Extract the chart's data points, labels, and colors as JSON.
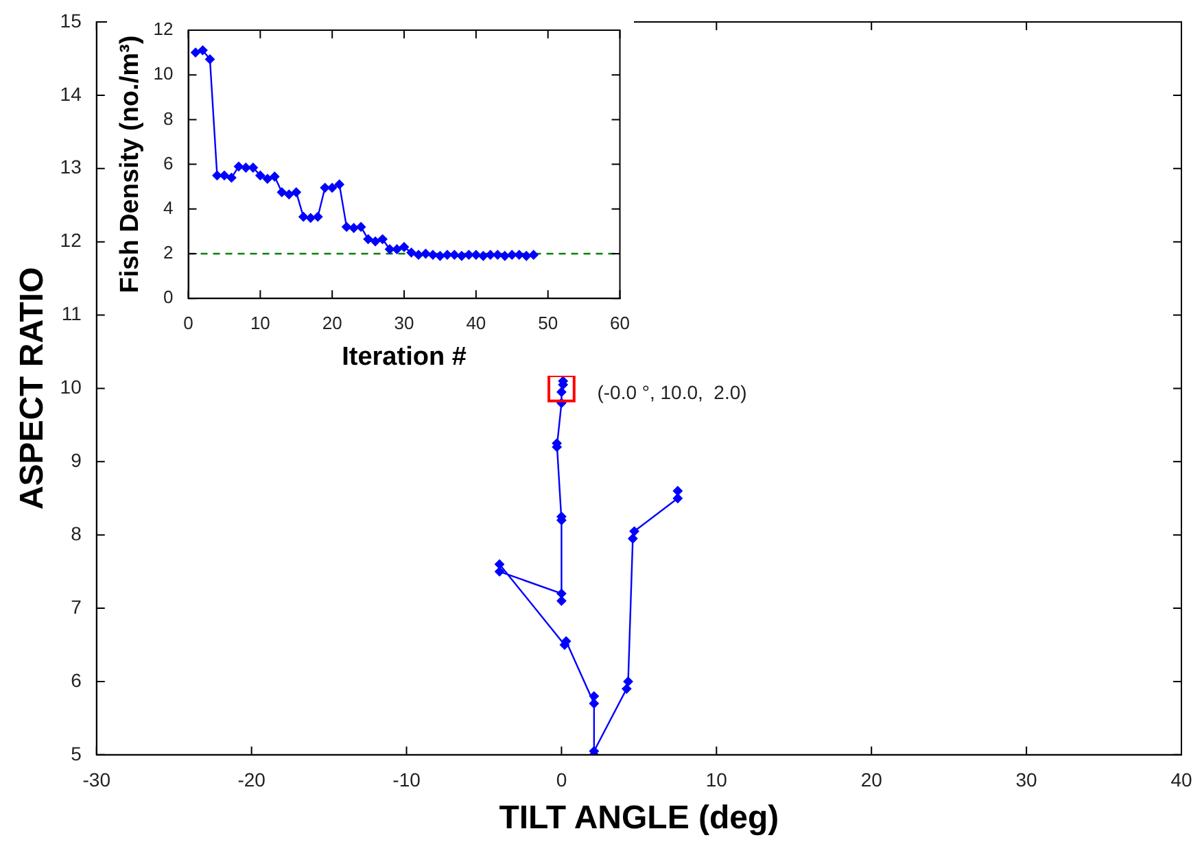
{
  "chart_data": [
    {
      "type": "line",
      "xlabel": "TILT ANGLE (deg)",
      "ylabel": "ASPECT RATIO",
      "xlim": [
        -30,
        40
      ],
      "xticks": [
        -30,
        -20,
        -10,
        0,
        10,
        20,
        30,
        40
      ],
      "ylim": [
        5,
        15
      ],
      "yticks": [
        5,
        6,
        7,
        8,
        9,
        10,
        11,
        12,
        13,
        14,
        15
      ],
      "marker": "diamond",
      "series": [
        {
          "color": "#0000ff",
          "x": [
            7.5,
            7.5,
            4.7,
            4.6,
            4.3,
            4.2,
            2.1,
            2.1,
            2.1,
            2.1,
            0.3,
            0.2,
            -4.0,
            -4.0,
            0.0,
            0.0,
            0.0,
            0.0,
            -0.3,
            -0.3,
            0.0,
            0.0,
            0.1,
            0.1
          ],
          "values": [
            8.6,
            8.5,
            8.05,
            7.95,
            6.0,
            5.9,
            5.05,
            5.0,
            5.8,
            5.7,
            6.55,
            6.5,
            7.6,
            7.5,
            7.2,
            7.1,
            8.25,
            8.2,
            9.25,
            9.2,
            9.8,
            9.95,
            10.05,
            10.1
          ]
        },
        {
          "type": "scatter",
          "marker": "square",
          "color": "#ff0000",
          "x": [
            0
          ],
          "values": [
            10
          ]
        }
      ],
      "annotations": [
        {
          "text": "(-0.0 °, 10.0,  2.0)",
          "x": 0,
          "y": 10
        }
      ]
    },
    {
      "type": "line",
      "xlabel": "Iteration #",
      "ylabel": "Fish Density (no./m³)",
      "xlim": [
        0,
        60
      ],
      "xticks": [
        0,
        10,
        20,
        30,
        40,
        50,
        60
      ],
      "ylim": [
        0,
        12
      ],
      "yticks": [
        0,
        2,
        4,
        6,
        8,
        10,
        12
      ],
      "marker": "diamond",
      "series": [
        {
          "color": "#0000ff",
          "x": [
            1,
            2,
            3,
            4,
            5,
            6,
            7,
            8,
            9,
            10,
            11,
            12,
            13,
            14,
            15,
            16,
            17,
            18,
            19,
            20,
            21,
            22,
            23,
            24,
            25,
            26,
            27,
            28,
            29,
            30,
            31,
            32,
            33,
            34,
            35,
            36,
            37,
            38,
            39,
            40,
            41,
            42,
            43,
            44,
            45,
            46,
            47,
            48
          ],
          "values": [
            11.0,
            11.1,
            10.7,
            5.5,
            5.5,
            5.4,
            5.9,
            5.85,
            5.85,
            5.5,
            5.35,
            5.45,
            4.75,
            4.65,
            4.75,
            3.65,
            3.6,
            3.65,
            4.95,
            4.95,
            5.1,
            3.2,
            3.15,
            3.2,
            2.65,
            2.55,
            2.65,
            2.2,
            2.2,
            2.3,
            2.05,
            1.95,
            2.0,
            1.95,
            1.9,
            1.95,
            1.95,
            1.9,
            1.95,
            1.95,
            1.9,
            1.95,
            1.95,
            1.9,
            1.95,
            1.95,
            1.9,
            1.95
          ]
        }
      ],
      "ref_lines": [
        {
          "axis": "y",
          "value": 2,
          "color": "#008000",
          "line_style": "dashed"
        }
      ]
    }
  ]
}
